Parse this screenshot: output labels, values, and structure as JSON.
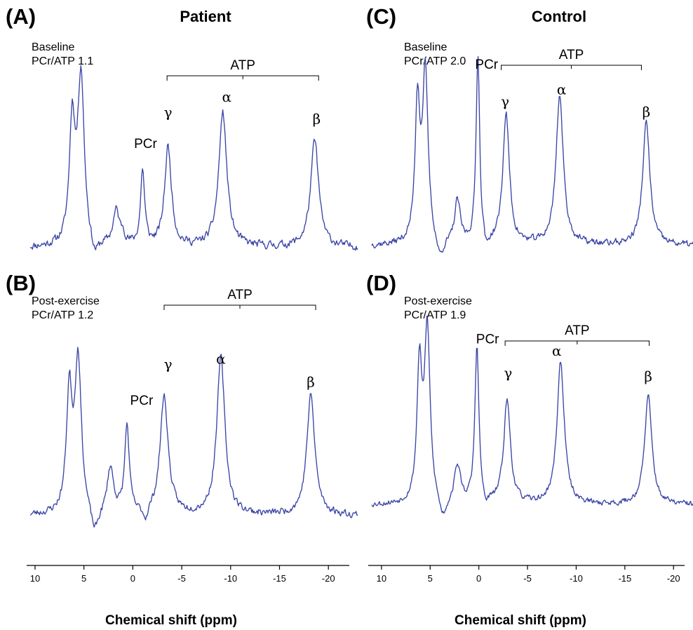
{
  "chart_data": [
    {
      "type": "line",
      "panel": "(A)",
      "group_title": "Patient",
      "info": [
        "Baseline",
        "PCr/ATP 1.1"
      ],
      "xlabel": "Chemical shift (ppm)",
      "xlim": [
        10.5,
        -23
      ],
      "x_ticks": [
        10,
        5,
        0,
        -5,
        -10,
        -15,
        -20
      ],
      "x_tick_labels": [
        "10",
        "5",
        "0",
        "-5",
        "-10",
        "-15",
        "-20"
      ],
      "axis_reversed": true,
      "atp_bracket": {
        "label": "ATP",
        "from": -3.5,
        "to": -19
      },
      "peak_labels": [
        {
          "text": "PCr",
          "x": -1.3,
          "level": 0.6
        },
        {
          "text": "γ",
          "x": -3.6,
          "level": 0.78
        },
        {
          "text": "α",
          "x": -9.6,
          "level": 0.87
        },
        {
          "text": "β",
          "x": -18.8,
          "level": 0.74
        }
      ],
      "peaks": [
        {
          "x": 6.2,
          "height": 0.7,
          "width": 0.35
        },
        {
          "x": 5.3,
          "height": 0.98,
          "width": 0.4
        },
        {
          "x": 3.9,
          "height": -0.1,
          "width": 0.45
        },
        {
          "x": 1.7,
          "height": 0.2,
          "width": 0.4
        },
        {
          "x": 1.0,
          "height": 0.06,
          "width": 0.25
        },
        {
          "x": -1.0,
          "height": 0.44,
          "width": 0.25
        },
        {
          "x": -3.6,
          "height": 0.58,
          "width": 0.42
        },
        {
          "x": -9.2,
          "height": 0.78,
          "width": 0.5
        },
        {
          "x": -18.6,
          "height": 0.62,
          "width": 0.5
        }
      ],
      "baseline_level": 0.02,
      "noise": 0.035,
      "seed": 11
    },
    {
      "type": "line",
      "panel": "(B)",
      "info": [
        "Post-exercise",
        "PCr/ATP 1.2"
      ],
      "xlabel": "Chemical shift (ppm)",
      "xlim": [
        10.5,
        -23
      ],
      "x_ticks": [
        10,
        5,
        0,
        -5,
        -10,
        -15,
        -20
      ],
      "x_tick_labels": [
        "10",
        "5",
        "0",
        "-5",
        "-10",
        "-15",
        "-20"
      ],
      "axis_reversed": true,
      "atp_bracket": {
        "label": "ATP",
        "from": -3.2,
        "to": -18.7
      },
      "peak_labels": [
        {
          "text": "PCr",
          "x": -0.9,
          "level": 0.62
        },
        {
          "text": "γ",
          "x": -3.6,
          "level": 0.82
        },
        {
          "text": "α",
          "x": -9.0,
          "level": 0.85
        },
        {
          "text": "β",
          "x": -18.2,
          "level": 0.72
        }
      ],
      "peaks": [
        {
          "x": 6.5,
          "height": 0.66,
          "width": 0.35
        },
        {
          "x": 5.6,
          "height": 0.86,
          "width": 0.4
        },
        {
          "x": 3.9,
          "height": -0.14,
          "width": 0.5
        },
        {
          "x": 2.3,
          "height": 0.26,
          "width": 0.4
        },
        {
          "x": 0.6,
          "height": 0.49,
          "width": 0.28
        },
        {
          "x": -1.3,
          "height": -0.07,
          "width": 0.3
        },
        {
          "x": -3.2,
          "height": 0.66,
          "width": 0.5
        },
        {
          "x": -9.0,
          "height": 0.88,
          "width": 0.5
        },
        {
          "x": -18.2,
          "height": 0.67,
          "width": 0.5
        }
      ],
      "baseline_level": 0.0,
      "noise": 0.03,
      "seed": 23
    },
    {
      "type": "line",
      "panel": "(C)",
      "group_title": "Control",
      "info": [
        "Baseline",
        "PCr/ATP 2.0"
      ],
      "xlabel": "Chemical shift (ppm)",
      "xlim": [
        11,
        -22
      ],
      "x_ticks": [
        10,
        5,
        0,
        -5,
        -10,
        -15,
        -20
      ],
      "x_tick_labels": [
        "10",
        "5",
        "0",
        "-5",
        "-10",
        "-15",
        "-20"
      ],
      "axis_reversed": true,
      "atp_bracket": {
        "label": "ATP",
        "from": -2.3,
        "to": -16.7
      },
      "peak_labels": [
        {
          "text": "PCr",
          "x": -0.8,
          "level": 1.05
        },
        {
          "text": "γ",
          "x": -2.7,
          "level": 0.83
        },
        {
          "text": "α",
          "x": -8.5,
          "level": 0.9
        },
        {
          "text": "β",
          "x": -17.2,
          "level": 0.77
        }
      ],
      "peaks": [
        {
          "x": 6.3,
          "height": 0.8,
          "width": 0.3
        },
        {
          "x": 5.5,
          "height": 0.98,
          "width": 0.35
        },
        {
          "x": 4.0,
          "height": -0.12,
          "width": 0.45
        },
        {
          "x": 2.2,
          "height": 0.25,
          "width": 0.35
        },
        {
          "x": 0.1,
          "height": 1.1,
          "width": 0.22
        },
        {
          "x": -0.8,
          "height": -0.08,
          "width": 0.25
        },
        {
          "x": -2.8,
          "height": 0.76,
          "width": 0.4
        },
        {
          "x": -8.3,
          "height": 0.87,
          "width": 0.45
        },
        {
          "x": -17.2,
          "height": 0.71,
          "width": 0.45
        }
      ],
      "baseline_level": 0.02,
      "noise": 0.03,
      "seed": 37
    },
    {
      "type": "line",
      "panel": "(D)",
      "info": [
        "Post-exercise",
        "PCr/ATP 1.9"
      ],
      "xlabel": "Chemical shift (ppm)",
      "xlim": [
        11,
        -22
      ],
      "x_ticks": [
        10,
        5,
        0,
        -5,
        -10,
        -15,
        -20
      ],
      "x_tick_labels": [
        "10",
        "5",
        "0",
        "-5",
        "-10",
        "-15",
        "-20"
      ],
      "axis_reversed": true,
      "atp_bracket": {
        "label": "ATP",
        "from": -2.7,
        "to": -17.5
      },
      "peak_labels": [
        {
          "text": "PCr",
          "x": -0.9,
          "level": 0.94
        },
        {
          "text": "γ",
          "x": -3.0,
          "level": 0.74
        },
        {
          "text": "α",
          "x": -8.0,
          "level": 0.87
        },
        {
          "text": "β",
          "x": -17.4,
          "level": 0.72
        }
      ],
      "peaks": [
        {
          "x": 6.1,
          "height": 0.78,
          "width": 0.3
        },
        {
          "x": 5.3,
          "height": 1.0,
          "width": 0.35
        },
        {
          "x": 3.7,
          "height": -0.12,
          "width": 0.5
        },
        {
          "x": 2.2,
          "height": 0.22,
          "width": 0.4
        },
        {
          "x": 0.2,
          "height": 0.91,
          "width": 0.25
        },
        {
          "x": -0.7,
          "height": -0.06,
          "width": 0.25
        },
        {
          "x": -2.9,
          "height": 0.6,
          "width": 0.42
        },
        {
          "x": -8.4,
          "height": 0.83,
          "width": 0.45
        },
        {
          "x": -17.4,
          "height": 0.63,
          "width": 0.45
        }
      ],
      "baseline_level": 0.0,
      "noise": 0.025,
      "seed": 53
    }
  ]
}
